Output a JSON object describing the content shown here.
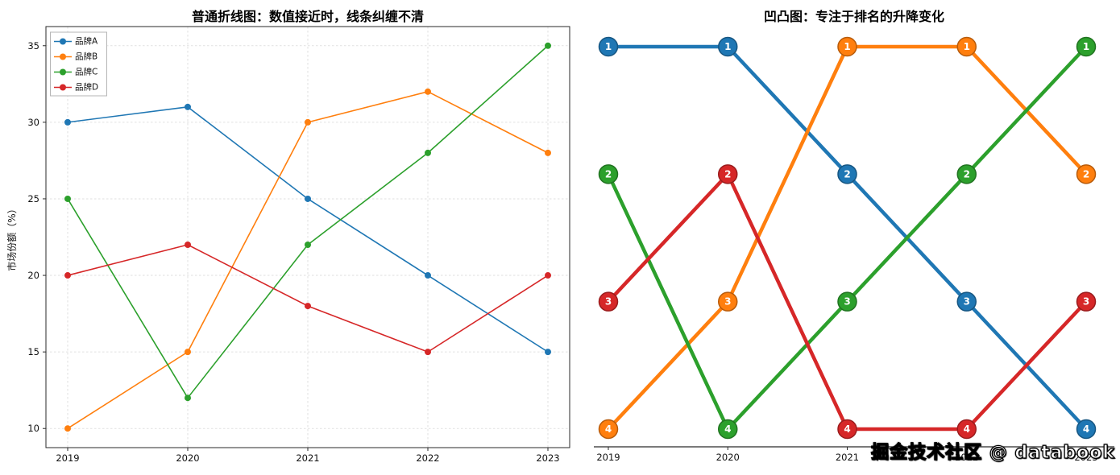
{
  "watermark": "掘金技术社区 @ databook",
  "colors": {
    "blue": "#1f77b4",
    "orange": "#ff7f0e",
    "green": "#2ca02c",
    "red": "#d62728"
  },
  "chart_data": [
    {
      "type": "line",
      "title": "普通折线图：数值接近时，线条纠缠不清",
      "xlabel": "",
      "ylabel": "市场份额（%）",
      "x": [
        2019,
        2020,
        2021,
        2022,
        2023
      ],
      "series": [
        {
          "name": "品牌A",
          "color": "#1f77b4",
          "values": [
            30,
            31,
            25,
            20,
            15
          ]
        },
        {
          "name": "品牌B",
          "color": "#ff7f0e",
          "values": [
            10,
            15,
            30,
            32,
            28
          ]
        },
        {
          "name": "品牌C",
          "color": "#2ca02c",
          "values": [
            25,
            12,
            22,
            28,
            35
          ]
        },
        {
          "name": "品牌D",
          "color": "#d62728",
          "values": [
            20,
            22,
            18,
            15,
            20
          ]
        }
      ],
      "yticks": [
        10,
        15,
        20,
        25,
        30,
        35
      ],
      "ylim": [
        8.75,
        36.25
      ],
      "grid": true,
      "legend_position": "upper left"
    },
    {
      "type": "line",
      "subtype": "bump",
      "title": "凹凸图：专注于排名的升降变化",
      "xlabel": "",
      "ylabel": "",
      "x": [
        2019,
        2020,
        2021,
        2022,
        2023
      ],
      "series": [
        {
          "name": "品牌A",
          "color": "#1f77b4",
          "ranks": [
            1,
            1,
            2,
            3,
            4
          ]
        },
        {
          "name": "品牌B",
          "color": "#ff7f0e",
          "ranks": [
            4,
            3,
            1,
            1,
            2
          ]
        },
        {
          "name": "品牌C",
          "color": "#2ca02c",
          "ranks": [
            2,
            4,
            3,
            2,
            1
          ]
        },
        {
          "name": "品牌D",
          "color": "#d62728",
          "ranks": [
            3,
            2,
            4,
            4,
            3
          ]
        }
      ],
      "rank_range": [
        1,
        4
      ],
      "rank_axis_inverted": true,
      "grid": false,
      "legend_position": "none"
    }
  ]
}
